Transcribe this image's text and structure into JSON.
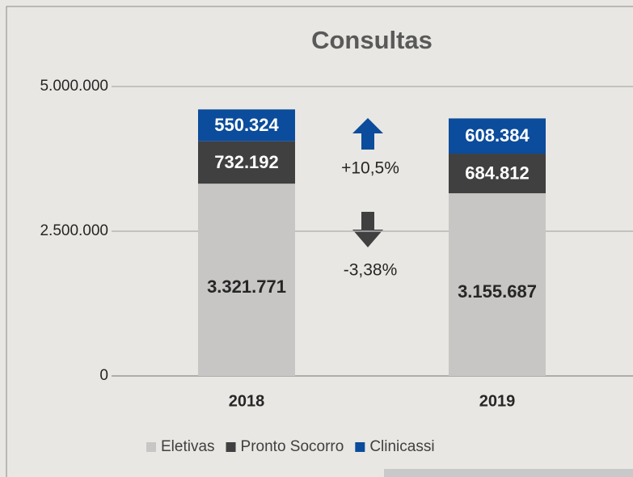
{
  "chart_data": {
    "type": "stacked_bar",
    "title": "Consultas",
    "categories": [
      "2018",
      "2019"
    ],
    "series": [
      {
        "name": "Eletivas",
        "color": "#c8c6c4",
        "values": [
          3321771,
          3155687
        ],
        "value_labels": [
          "3.321.771",
          "3.155.687"
        ]
      },
      {
        "name": "Pronto Socorro",
        "color": "#404040",
        "values": [
          732192,
          684812
        ],
        "value_labels": [
          "732.192",
          "684.812"
        ]
      },
      {
        "name": "Clinicassi",
        "color": "#0b4c9c",
        "values": [
          550324,
          608384
        ],
        "value_labels": [
          "550.324",
          "608.384"
        ]
      }
    ],
    "ylim": [
      0,
      5000000
    ],
    "yticks": [
      0,
      {
        "value": 2500000,
        "label": "2.500.000"
      },
      {
        "value": 5000000,
        "label": "5.000.000"
      }
    ],
    "grid": true,
    "legend": "bottom",
    "annotations": [
      "+10,5%",
      "-3,38%"
    ]
  }
}
